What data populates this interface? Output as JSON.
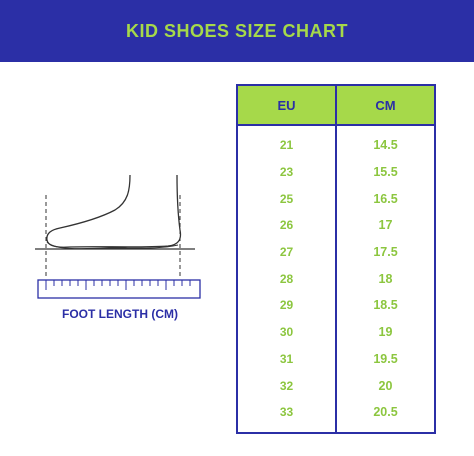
{
  "header": {
    "title": "KID SHOES SIZE CHART"
  },
  "illustration": {
    "caption": "FOOT LENGTH (CM)",
    "icon": "foot-measurement-icon"
  },
  "table": {
    "columns": [
      "EU",
      "CM"
    ],
    "rows": [
      {
        "eu": "21",
        "cm": "14.5"
      },
      {
        "eu": "23",
        "cm": "15.5"
      },
      {
        "eu": "25",
        "cm": "16.5"
      },
      {
        "eu": "26",
        "cm": "17"
      },
      {
        "eu": "27",
        "cm": "17.5"
      },
      {
        "eu": "28",
        "cm": "18"
      },
      {
        "eu": "29",
        "cm": "18.5"
      },
      {
        "eu": "30",
        "cm": "19"
      },
      {
        "eu": "31",
        "cm": "19.5"
      },
      {
        "eu": "32",
        "cm": "20"
      },
      {
        "eu": "33",
        "cm": "20.5"
      }
    ]
  },
  "colors": {
    "primary": "#2b2fa6",
    "accent": "#a6d94a",
    "value_green": "#8cc63f"
  }
}
